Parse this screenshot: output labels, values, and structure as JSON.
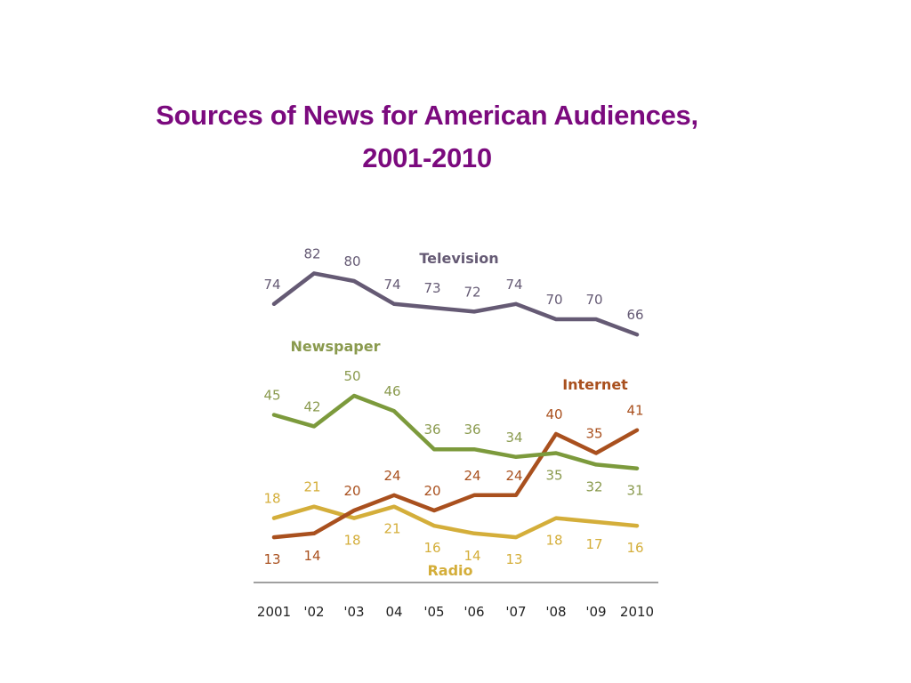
{
  "chart_data": {
    "type": "line",
    "title": "Sources of News for American Audiences, 2001-2010",
    "title_line1": "Sources of News for American Audiences,",
    "title_line2": "2001-2010",
    "xlabel": "",
    "ylabel": "",
    "categories": [
      "2001",
      "'02",
      "'03",
      "04",
      "'05",
      "'06",
      "'07",
      "'08",
      "'09",
      "2010"
    ],
    "ylim": [
      10,
      85
    ],
    "grid": false,
    "legend": "inline-labels",
    "series": [
      {
        "name": "Television",
        "color": "#655a74",
        "values": [
          74,
          82,
          80,
          74,
          73,
          72,
          74,
          70,
          70,
          66
        ],
        "label_pos": "above"
      },
      {
        "name": "Newspaper",
        "color": "#7c9a3c",
        "values": [
          45,
          42,
          50,
          46,
          36,
          36,
          34,
          35,
          32,
          31
        ],
        "label_pos": "above"
      },
      {
        "name": "Internet",
        "color": "#a9501e",
        "values": [
          13,
          14,
          20,
          24,
          20,
          24,
          24,
          40,
          35,
          41
        ],
        "label_pos": "mixed"
      },
      {
        "name": "Radio",
        "color": "#d4ae3a",
        "values": [
          18,
          21,
          18,
          21,
          16,
          14,
          13,
          18,
          17,
          16
        ],
        "label_pos": "mixed"
      }
    ],
    "label_colors": {
      "Television": "#655a74",
      "Newspaper": "#8a9a4e",
      "Internet": "#a9501e",
      "Radio": "#d4ae3a"
    }
  }
}
